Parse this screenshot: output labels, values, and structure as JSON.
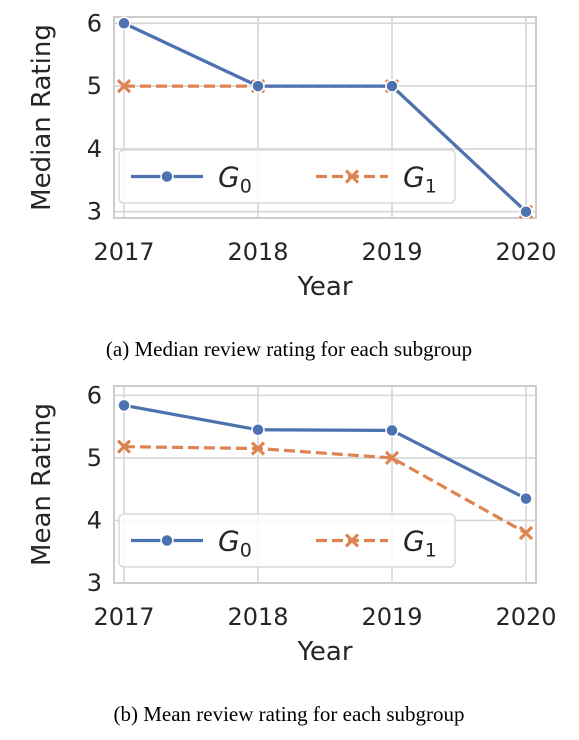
{
  "chart_data": [
    {
      "type": "line",
      "ylabel": "Median Rating",
      "xlabel": "Year",
      "x": [
        2017,
        2018,
        2019,
        2020
      ],
      "ylim": [
        2.9,
        6.1
      ],
      "yticks": [
        3,
        4,
        5,
        6
      ],
      "grid": true,
      "legend_position": "lower-center",
      "legend_columns": 2,
      "series": [
        {
          "name_base": "G",
          "name_sub": "0",
          "values": [
            6,
            5,
            5,
            3
          ],
          "color": "#4c72b0",
          "line_style": "solid",
          "marker": "circle"
        },
        {
          "name_base": "G",
          "name_sub": "1",
          "values": [
            5,
            5,
            5,
            3
          ],
          "color": "#dd8452",
          "line_style": "dashed",
          "marker": "x"
        }
      ],
      "caption": "(a) Median review rating for each subgroup"
    },
    {
      "type": "line",
      "ylabel": "Mean Rating",
      "xlabel": "Year",
      "x": [
        2017,
        2018,
        2019,
        2020
      ],
      "ylim": [
        3.0,
        6.15
      ],
      "yticks": [
        3,
        4,
        5,
        6
      ],
      "grid": true,
      "legend_position": "lower-center",
      "legend_columns": 2,
      "series": [
        {
          "name_base": "G",
          "name_sub": "0",
          "values": [
            5.84,
            5.45,
            5.44,
            4.35
          ],
          "color": "#4c72b0",
          "line_style": "solid",
          "marker": "circle"
        },
        {
          "name_base": "G",
          "name_sub": "1",
          "values": [
            5.18,
            5.15,
            5.0,
            3.8
          ],
          "color": "#dd8452",
          "line_style": "dashed",
          "marker": "x"
        }
      ],
      "caption": "(b) Mean review rating for each subgroup"
    }
  ]
}
